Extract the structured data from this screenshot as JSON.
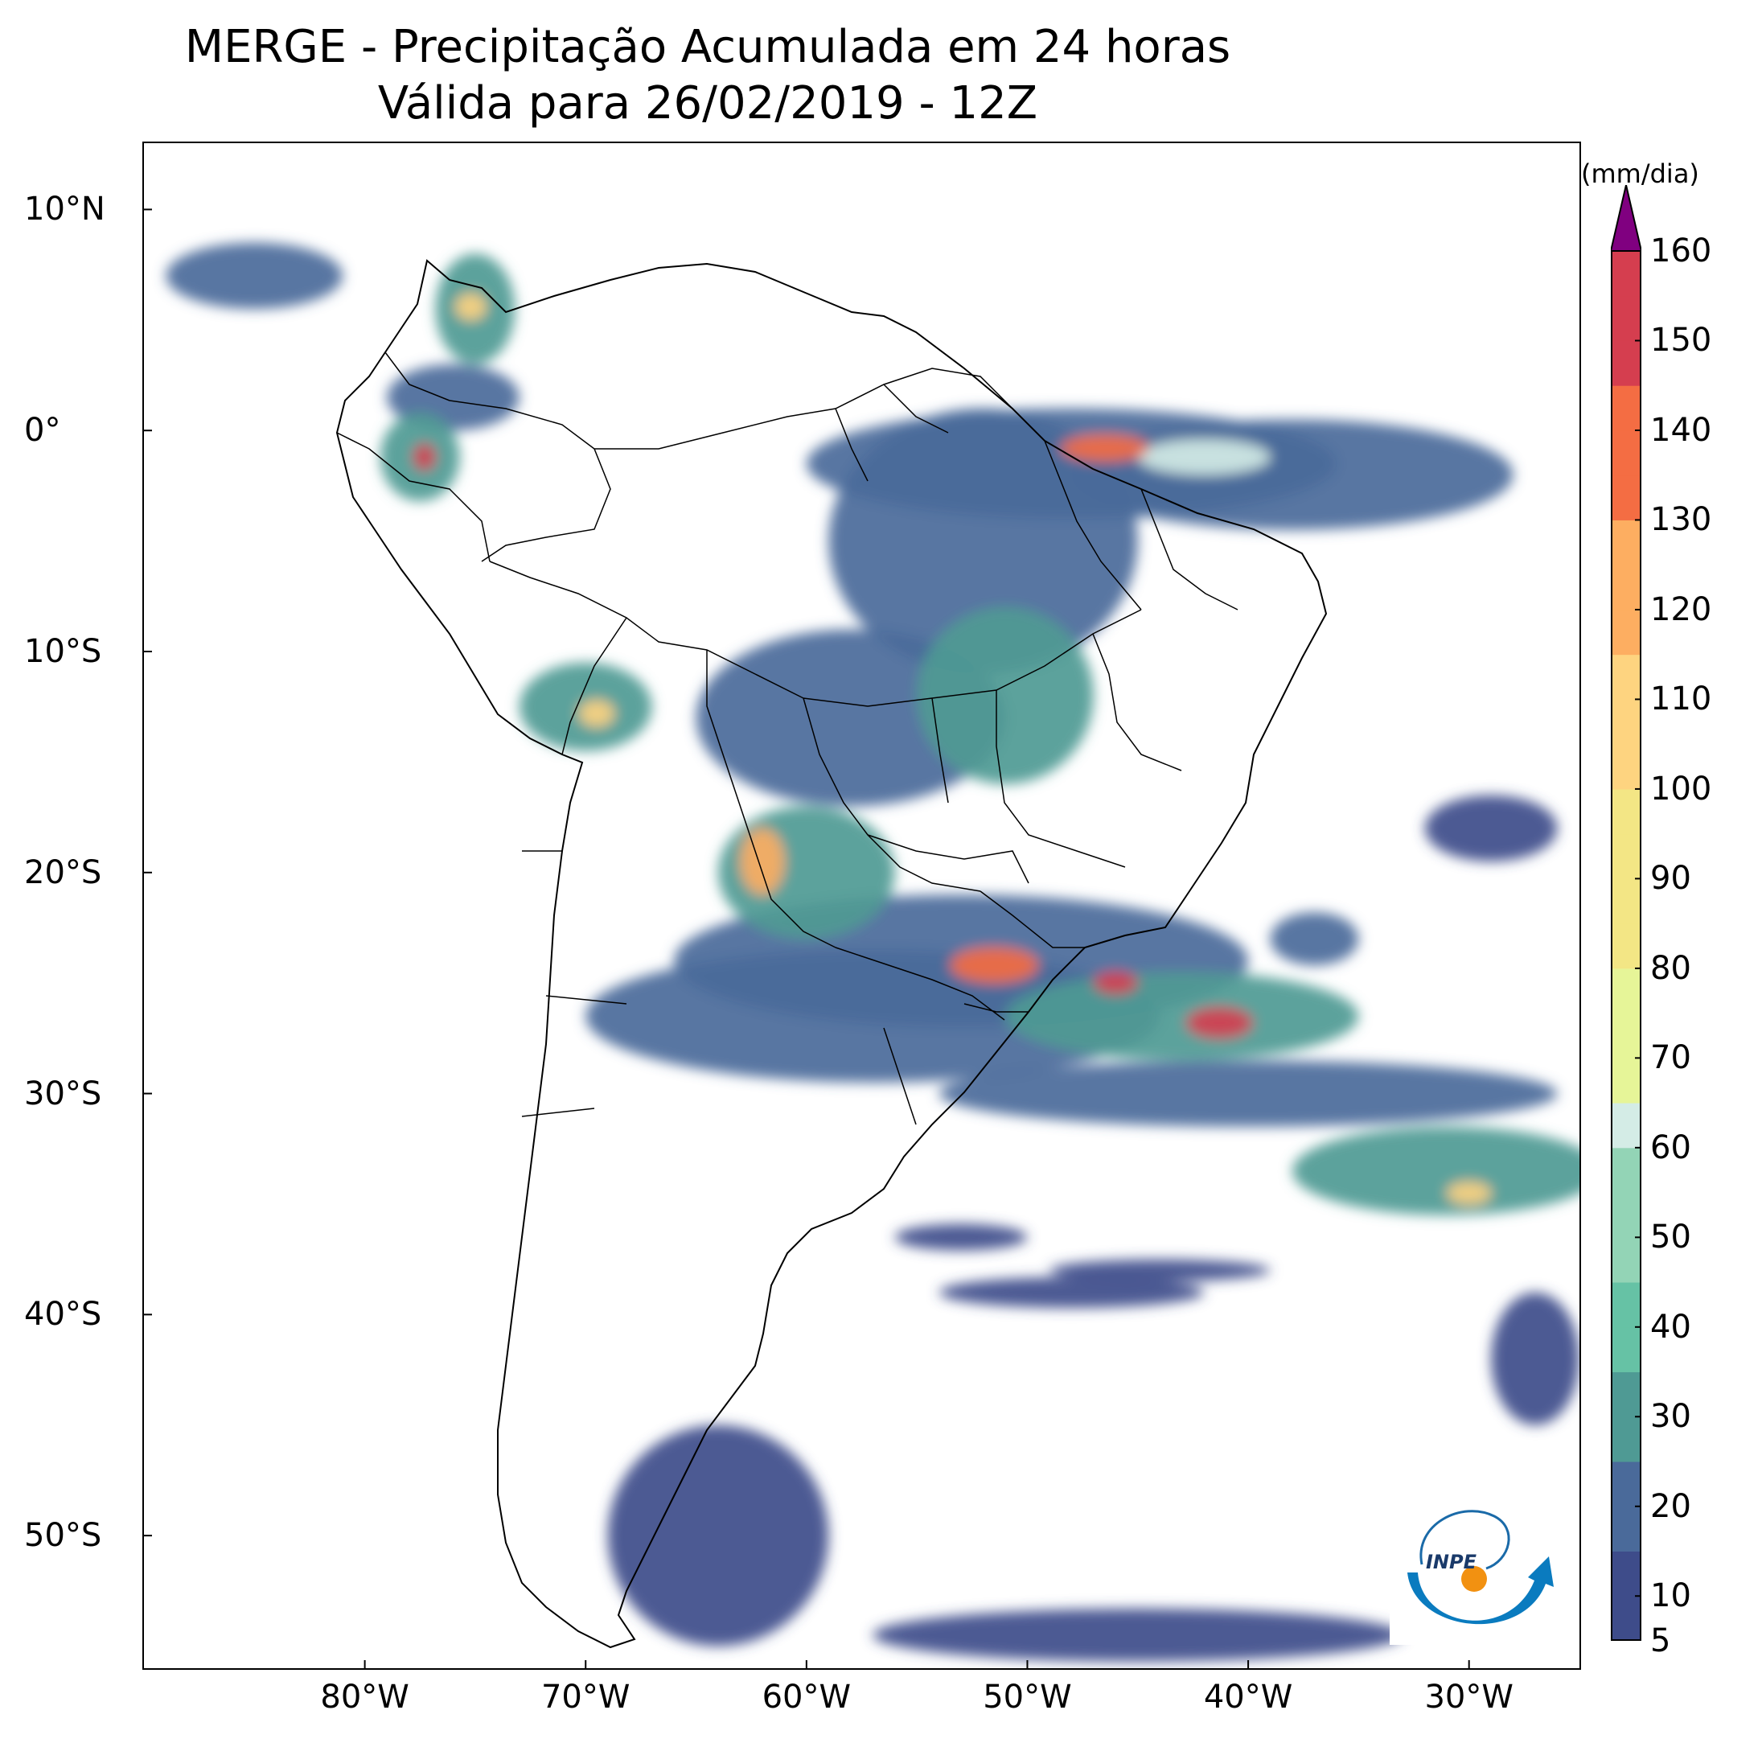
{
  "title": {
    "line1": "MERGE - Precipitação Acumulada em 24 horas",
    "line2": "Válida para 26/02/2019 - 12Z"
  },
  "map": {
    "lon_range": [
      -90,
      -25
    ],
    "lat_range": [
      -56,
      13
    ],
    "lat_ticks": [
      {
        "value": 10,
        "label": "10°N"
      },
      {
        "value": 0,
        "label": "0°"
      },
      {
        "value": -10,
        "label": "10°S"
      },
      {
        "value": -20,
        "label": "20°S"
      },
      {
        "value": -30,
        "label": "30°S"
      },
      {
        "value": -40,
        "label": "40°S"
      },
      {
        "value": -50,
        "label": "50°S"
      }
    ],
    "lon_ticks": [
      {
        "value": -80,
        "label": "80°W"
      },
      {
        "value": -70,
        "label": "70°W"
      },
      {
        "value": -60,
        "label": "60°W"
      },
      {
        "value": -50,
        "label": "50°W"
      },
      {
        "value": -40,
        "label": "40°W"
      },
      {
        "value": -30,
        "label": "30°W"
      }
    ],
    "precip_regions": [
      {
        "lon": -52,
        "lat": -5,
        "rx": 7,
        "ry": 6,
        "value": 15
      },
      {
        "lon": -51,
        "lat": -12,
        "rx": 4,
        "ry": 4,
        "value": 25
      },
      {
        "lon": -48,
        "lat": -1.5,
        "rx": 12,
        "ry": 2.5,
        "value": 20
      },
      {
        "lon": -38,
        "lat": -2,
        "rx": 10,
        "ry": 2.5,
        "value": 20
      },
      {
        "lon": -42,
        "lat": -1.2,
        "rx": 3,
        "ry": 0.8,
        "value": 60
      },
      {
        "lon": -46.5,
        "lat": -0.8,
        "rx": 2,
        "ry": 0.6,
        "value": 140
      },
      {
        "lon": -58,
        "lat": -13,
        "rx": 7,
        "ry": 4,
        "value": 15
      },
      {
        "lon": -70,
        "lat": -12.5,
        "rx": 3,
        "ry": 2,
        "value": 25
      },
      {
        "lon": -69.5,
        "lat": -12.8,
        "rx": 0.8,
        "ry": 0.6,
        "value": 110
      },
      {
        "lon": -60,
        "lat": -20,
        "rx": 4,
        "ry": 3,
        "value": 25
      },
      {
        "lon": -62,
        "lat": -19.5,
        "rx": 1,
        "ry": 1.5,
        "value": 120
      },
      {
        "lon": -53,
        "lat": -24,
        "rx": 13,
        "ry": 3,
        "value": 20
      },
      {
        "lon": -51.5,
        "lat": -24.2,
        "rx": 2,
        "ry": 0.8,
        "value": 130
      },
      {
        "lon": -57,
        "lat": -26.5,
        "rx": 13,
        "ry": 3,
        "value": 15
      },
      {
        "lon": -43,
        "lat": -26.5,
        "rx": 8,
        "ry": 2,
        "value": 30
      },
      {
        "lon": -41.3,
        "lat": -26.8,
        "rx": 1.5,
        "ry": 0.7,
        "value": 150
      },
      {
        "lon": -46,
        "lat": -25,
        "rx": 1,
        "ry": 0.5,
        "value": 150
      },
      {
        "lon": -40,
        "lat": -30,
        "rx": 14,
        "ry": 1.5,
        "value": 15
      },
      {
        "lon": -31,
        "lat": -33.5,
        "rx": 7,
        "ry": 2,
        "value": 25
      },
      {
        "lon": -30,
        "lat": -34.5,
        "rx": 1,
        "ry": 0.5,
        "value": 110
      },
      {
        "lon": -75,
        "lat": 5.5,
        "rx": 1.8,
        "ry": 2.5,
        "value": 30
      },
      {
        "lon": -75.2,
        "lat": 5.6,
        "rx": 0.7,
        "ry": 0.6,
        "value": 110
      },
      {
        "lon": -77.5,
        "lat": -1.2,
        "rx": 1.8,
        "ry": 2,
        "value": 25
      },
      {
        "lon": -77.3,
        "lat": -1.2,
        "rx": 0.5,
        "ry": 0.6,
        "value": 150
      },
      {
        "lon": -76,
        "lat": 1.5,
        "rx": 3,
        "ry": 1.5,
        "value": 15
      },
      {
        "lon": -85,
        "lat": 7,
        "rx": 4,
        "ry": 1.5,
        "value": 15
      },
      {
        "lon": -64,
        "lat": -50,
        "rx": 5,
        "ry": 5,
        "value": 10
      },
      {
        "lon": -53,
        "lat": -36.5,
        "rx": 3,
        "ry": 0.6,
        "value": 10
      },
      {
        "lon": -48,
        "lat": -39,
        "rx": 6,
        "ry": 0.7,
        "value": 10
      },
      {
        "lon": -44,
        "lat": -38,
        "rx": 5,
        "ry": 0.5,
        "value": 10
      },
      {
        "lon": -27,
        "lat": -42,
        "rx": 2,
        "ry": 3,
        "value": 10
      },
      {
        "lon": -45,
        "lat": -54.5,
        "rx": 12,
        "ry": 1.2,
        "value": 10
      },
      {
        "lon": -37,
        "lat": -23,
        "rx": 2,
        "ry": 1.2,
        "value": 15
      },
      {
        "lon": -29,
        "lat": -18,
        "rx": 3,
        "ry": 1.5,
        "value": 10
      }
    ]
  },
  "colorbar": {
    "unit": "(mm/dia)",
    "min": 5,
    "max": 160,
    "tick_values": [
      160,
      150,
      140,
      130,
      120,
      110,
      100,
      90,
      80,
      70,
      60,
      50,
      40,
      30,
      20,
      10,
      5
    ],
    "tick_labels": [
      "160",
      "150",
      "140",
      "130",
      "120",
      "110",
      "100",
      "90",
      "80",
      "70",
      "60",
      "50",
      "40",
      "30",
      "20",
      "10",
      "5"
    ],
    "stops": [
      {
        "value": 5,
        "color": "#3e4c8a"
      },
      {
        "value": 15,
        "color": "#4a6a9a"
      },
      {
        "value": 25,
        "color": "#4f9a94"
      },
      {
        "value": 35,
        "color": "#66c2a5"
      },
      {
        "value": 45,
        "color": "#93d4b6"
      },
      {
        "value": 60,
        "color": "#d4ece6"
      },
      {
        "value": 65,
        "color": "#e6f598"
      },
      {
        "value": 80,
        "color": "#f3e685"
      },
      {
        "value": 100,
        "color": "#fed480"
      },
      {
        "value": 115,
        "color": "#fdae61"
      },
      {
        "value": 130,
        "color": "#f46d43"
      },
      {
        "value": 145,
        "color": "#d53e4f"
      },
      {
        "value": 160,
        "color": "#a50f3a"
      }
    ],
    "extend_color": "#800080"
  },
  "logo": {
    "name": "INPE",
    "text": "INPE"
  }
}
